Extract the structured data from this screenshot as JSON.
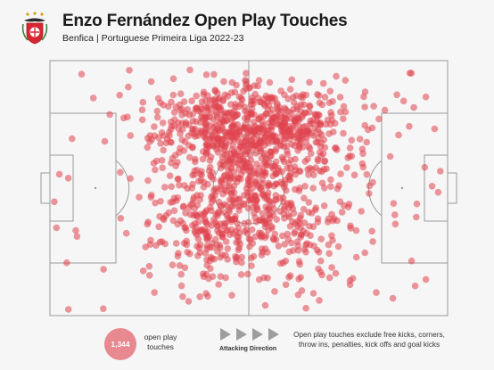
{
  "header": {
    "title": "Enzo Fernández Open Play Touches",
    "subtitle": "Benfica | Portuguese Primeira Liga 2022-23",
    "crest_icon": "benfica-eagle-crest"
  },
  "legend": {
    "count": "1,344",
    "count_label": "open play touches",
    "direction_label": "Attacking Direction",
    "note": "Open play touches exclude free kicks, corners, throw ins, penalties, kick offs and goal kicks"
  },
  "colors": {
    "touch": "#e0434f",
    "touch_legend": "#e8888f",
    "pitch_line": "#9a9a9a",
    "background": "#f6f6f6"
  },
  "chart_data": {
    "type": "scatter",
    "title": "Enzo Fernández Open Play Touches",
    "subtitle": "Benfica | Portuguese Primeira Liga 2022-23",
    "total_points": 1344,
    "coordinate_system": "pitch coordinates 0-100 on both axes; x = attacking direction left to right",
    "xlim": [
      0,
      100
    ],
    "ylim": [
      0,
      100
    ],
    "grid": false,
    "density_regions": [
      {
        "x": 42,
        "y": 27,
        "weight": 0.22,
        "sx": 9,
        "sy": 9
      },
      {
        "x": 58,
        "y": 27,
        "weight": 0.22,
        "sx": 9,
        "sy": 9
      },
      {
        "x": 40,
        "y": 65,
        "weight": 0.13,
        "sx": 8,
        "sy": 12
      },
      {
        "x": 60,
        "y": 66,
        "weight": 0.13,
        "sx": 8,
        "sy": 12
      },
      {
        "x": 50,
        "y": 45,
        "weight": 0.12,
        "sx": 6,
        "sy": 10
      },
      {
        "x": 50,
        "y": 50,
        "weight": 0.18,
        "sx": 24,
        "sy": 30
      }
    ]
  }
}
